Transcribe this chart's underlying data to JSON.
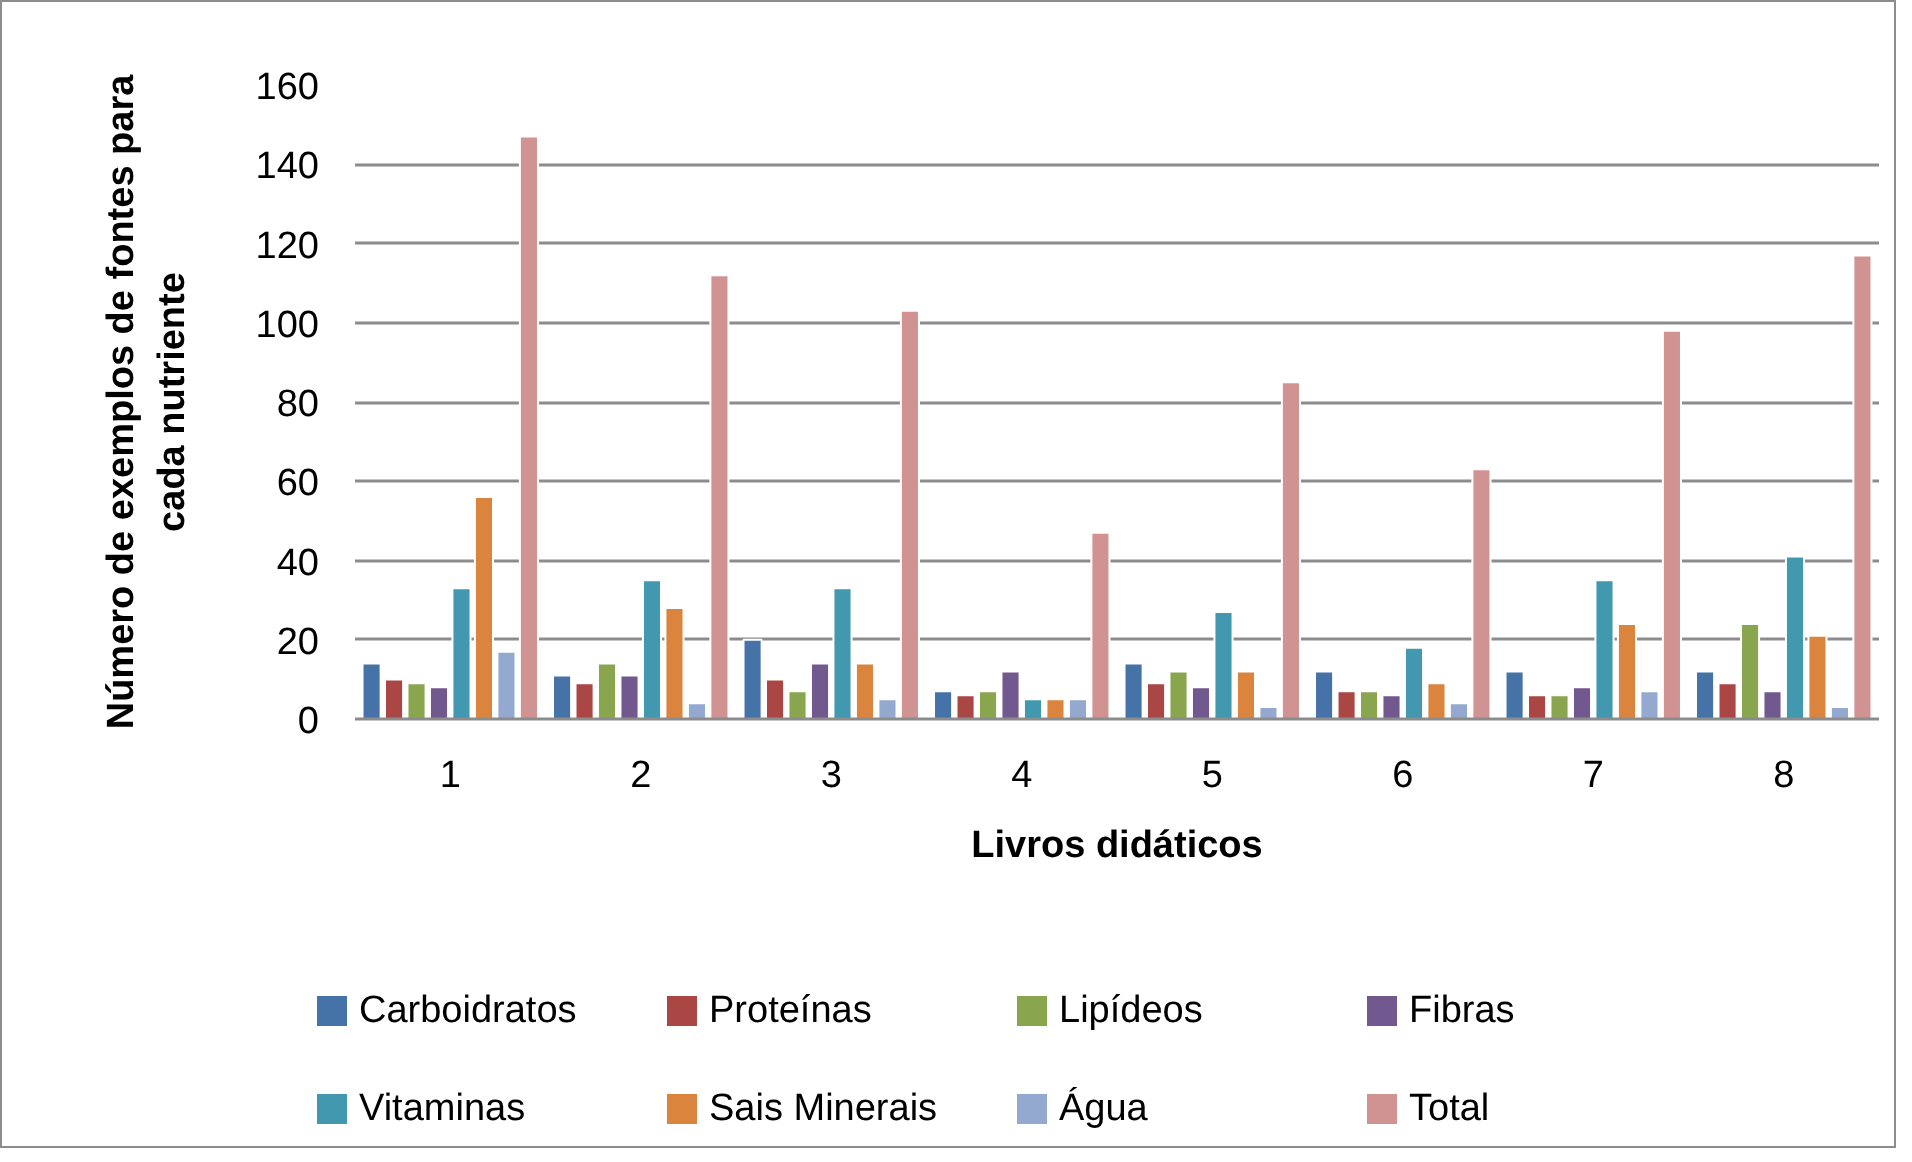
{
  "chart_data": {
    "type": "bar",
    "xlabel": "Livros didáticos",
    "ylabel": "Número de exemplos de fontes para cada nutriente",
    "categories": [
      "1",
      "2",
      "3",
      "4",
      "5",
      "6",
      "7",
      "8"
    ],
    "series": [
      {
        "name": "Carboidratos",
        "color": "#4572a7",
        "values": [
          14,
          11,
          20,
          7,
          14,
          12,
          12,
          12
        ]
      },
      {
        "name": "Proteínas",
        "color": "#aa4643",
        "values": [
          10,
          9,
          10,
          6,
          9,
          7,
          6,
          9
        ]
      },
      {
        "name": "Lipídeos",
        "color": "#89a54e",
        "values": [
          9,
          14,
          7,
          7,
          12,
          7,
          6,
          24
        ]
      },
      {
        "name": "Fibras",
        "color": "#71588f",
        "values": [
          8,
          11,
          14,
          12,
          8,
          6,
          8,
          7
        ]
      },
      {
        "name": "Vitaminas",
        "color": "#4198af",
        "values": [
          33,
          35,
          33,
          5,
          27,
          18,
          35,
          41
        ]
      },
      {
        "name": "Sais Minerais",
        "color": "#db843d",
        "values": [
          56,
          28,
          14,
          5,
          12,
          9,
          24,
          21
        ]
      },
      {
        "name": "Água",
        "color": "#93a9cf",
        "values": [
          17,
          4,
          5,
          5,
          3,
          4,
          7,
          3
        ]
      },
      {
        "name": "Total",
        "color": "#d19392",
        "values": [
          147,
          112,
          103,
          47,
          85,
          63,
          98,
          117
        ]
      }
    ],
    "ylim": [
      0,
      160
    ],
    "yticks": [
      0,
      20,
      40,
      60,
      80,
      100,
      120,
      140,
      160
    ],
    "grid": "y",
    "legend": "bottom"
  }
}
